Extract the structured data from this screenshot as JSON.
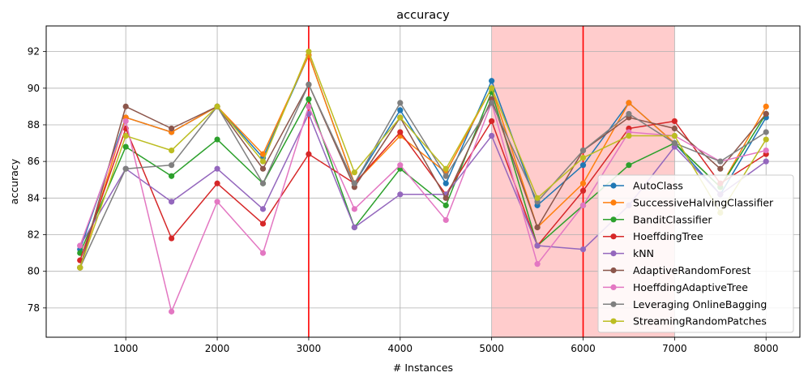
{
  "chart_data": {
    "type": "line",
    "title": "accuracy",
    "xlabel": "# Instances",
    "ylabel": "accuracy",
    "xlim": [
      130,
      8370
    ],
    "ylim": [
      76.4,
      93.4
    ],
    "xticks": [
      1000,
      2000,
      3000,
      4000,
      5000,
      6000,
      7000,
      8000
    ],
    "yticks": [
      78,
      80,
      82,
      84,
      86,
      88,
      90,
      92
    ],
    "grid": true,
    "legend_position": "lower right",
    "x": [
      500,
      1000,
      1500,
      2000,
      2500,
      3000,
      3500,
      4000,
      4500,
      5000,
      5500,
      6000,
      6500,
      7000,
      7500,
      8000
    ],
    "vertical_lines": [
      {
        "x": 3000,
        "color": "#ff0000"
      },
      {
        "x": 6000,
        "color": "#ff0000"
      }
    ],
    "shaded_spans": [
      {
        "x0": 5000,
        "x1": 7000,
        "color": "#ffcccc"
      }
    ],
    "series": [
      {
        "name": "AutoClass",
        "color": "#1f77b4",
        "values": [
          81.2,
          88.4,
          87.6,
          89.0,
          86.2,
          91.8,
          84.8,
          88.8,
          84.8,
          90.4,
          83.6,
          85.8,
          89.2,
          87.0,
          84.2,
          88.4
        ]
      },
      {
        "name": "SuccessiveHalvingClassifier",
        "color": "#ff7f0e",
        "values": [
          80.2,
          88.4,
          87.6,
          89.0,
          86.4,
          91.8,
          84.8,
          87.4,
          85.4,
          90.0,
          82.4,
          84.8,
          89.2,
          87.0,
          84.6,
          89.0
        ]
      },
      {
        "name": "BanditClassifier",
        "color": "#2ca02c",
        "values": [
          81.0,
          86.8,
          85.2,
          87.2,
          84.8,
          89.4,
          82.4,
          85.6,
          83.6,
          89.8,
          81.4,
          83.6,
          85.8,
          87.0,
          84.6,
          88.6
        ]
      },
      {
        "name": "HoeffdingTree",
        "color": "#d62728",
        "values": [
          80.6,
          87.8,
          81.8,
          84.8,
          82.6,
          86.4,
          84.8,
          87.6,
          84.2,
          88.2,
          81.4,
          84.4,
          87.8,
          88.2,
          84.8,
          86.4
        ]
      },
      {
        "name": "kNN",
        "color": "#9467bd",
        "values": [
          81.4,
          85.6,
          83.8,
          85.6,
          83.4,
          88.6,
          82.4,
          84.2,
          84.2,
          87.4,
          81.4,
          81.2,
          83.6,
          86.8,
          84.2,
          86.0
        ]
      },
      {
        "name": "AdaptiveRandomForest",
        "color": "#8c564b",
        "values": [
          80.2,
          89.0,
          87.8,
          89.0,
          85.6,
          90.2,
          84.6,
          88.4,
          84.0,
          89.4,
          82.4,
          86.6,
          88.4,
          87.8,
          85.6,
          88.6
        ]
      },
      {
        "name": "HoeffdingAdaptiveTree",
        "color": "#e377c2",
        "values": [
          81.4,
          88.2,
          77.8,
          83.8,
          81.0,
          89.0,
          83.4,
          85.8,
          82.8,
          89.2,
          80.4,
          83.6,
          87.6,
          87.4,
          86.0,
          86.6
        ]
      },
      {
        "name": "Leveraging OnlineBagging",
        "color": "#7f7f7f",
        "values": [
          80.2,
          85.6,
          85.8,
          89.0,
          84.8,
          90.2,
          84.8,
          89.2,
          85.2,
          89.2,
          83.8,
          86.6,
          88.6,
          87.0,
          86.0,
          87.6
        ]
      },
      {
        "name": "StreamingRandomPatches",
        "color": "#bcbd22",
        "values": [
          80.2,
          87.4,
          86.6,
          89.0,
          86.0,
          92.0,
          85.4,
          88.4,
          85.6,
          90.0,
          84.0,
          86.2,
          87.4,
          87.4,
          83.2,
          87.2
        ]
      }
    ]
  }
}
